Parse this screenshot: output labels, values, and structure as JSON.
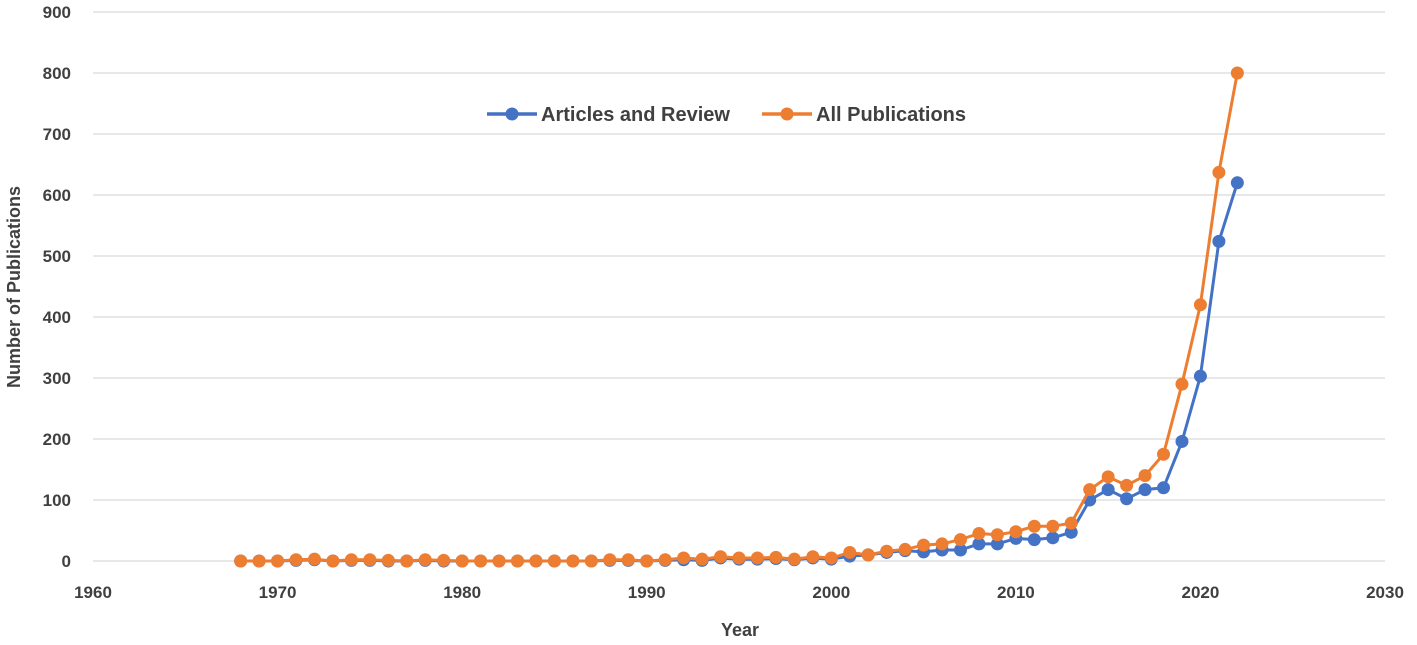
{
  "chart_data": {
    "type": "line",
    "title": "",
    "xlabel": "Year",
    "ylabel": "Number of Publications",
    "xlim": [
      1960,
      2030
    ],
    "ylim": [
      0,
      900
    ],
    "x_ticks": [
      1960,
      1970,
      1980,
      1990,
      2000,
      2010,
      2020,
      2030
    ],
    "y_ticks": [
      0,
      100,
      200,
      300,
      400,
      500,
      600,
      700,
      800,
      900
    ],
    "grid": "horizontal",
    "legend_position": "top-center",
    "series": [
      {
        "name": "Articles and Review",
        "color": "#4472c4",
        "x": [
          1968,
          1969,
          1970,
          1971,
          1972,
          1973,
          1974,
          1975,
          1976,
          1977,
          1978,
          1979,
          1980,
          1981,
          1982,
          1983,
          1984,
          1985,
          1986,
          1987,
          1988,
          1989,
          1990,
          1991,
          1992,
          1993,
          1994,
          1995,
          1996,
          1997,
          1998,
          1999,
          2000,
          2001,
          2002,
          2003,
          2004,
          2005,
          2006,
          2007,
          2008,
          2009,
          2010,
          2011,
          2012,
          2013,
          2014,
          2015,
          2016,
          2017,
          2018,
          2019,
          2020,
          2021,
          2022
        ],
        "y": [
          0,
          0,
          0,
          1,
          2,
          0,
          1,
          1,
          0,
          0,
          1,
          0,
          0,
          0,
          0,
          0,
          0,
          0,
          0,
          0,
          1,
          1,
          0,
          1,
          2,
          1,
          5,
          3,
          3,
          4,
          2,
          5,
          3,
          8,
          10,
          14,
          17,
          15,
          18,
          18,
          28,
          28,
          37,
          35,
          38,
          47,
          100,
          117,
          102,
          117,
          120,
          196,
          303,
          524,
          620
        ]
      },
      {
        "name": "All Publications",
        "color": "#ed7d31",
        "x": [
          1968,
          1969,
          1970,
          1971,
          1972,
          1973,
          1974,
          1975,
          1976,
          1977,
          1978,
          1979,
          1980,
          1981,
          1982,
          1983,
          1984,
          1985,
          1986,
          1987,
          1988,
          1989,
          1990,
          1991,
          1992,
          1993,
          1994,
          1995,
          1996,
          1997,
          1998,
          1999,
          2000,
          2001,
          2002,
          2003,
          2004,
          2005,
          2006,
          2007,
          2008,
          2009,
          2010,
          2011,
          2012,
          2013,
          2014,
          2015,
          2016,
          2017,
          2018,
          2019,
          2020,
          2021,
          2022
        ],
        "y": [
          0,
          0,
          0,
          2,
          3,
          0,
          2,
          2,
          1,
          0,
          2,
          1,
          0,
          0,
          0,
          0,
          0,
          0,
          0,
          0,
          2,
          2,
          0,
          2,
          5,
          3,
          7,
          5,
          5,
          6,
          3,
          7,
          5,
          14,
          10,
          16,
          19,
          26,
          28,
          35,
          45,
          43,
          48,
          57,
          57,
          62,
          117,
          138,
          124,
          140,
          175,
          290,
          420,
          637,
          800
        ]
      }
    ]
  }
}
